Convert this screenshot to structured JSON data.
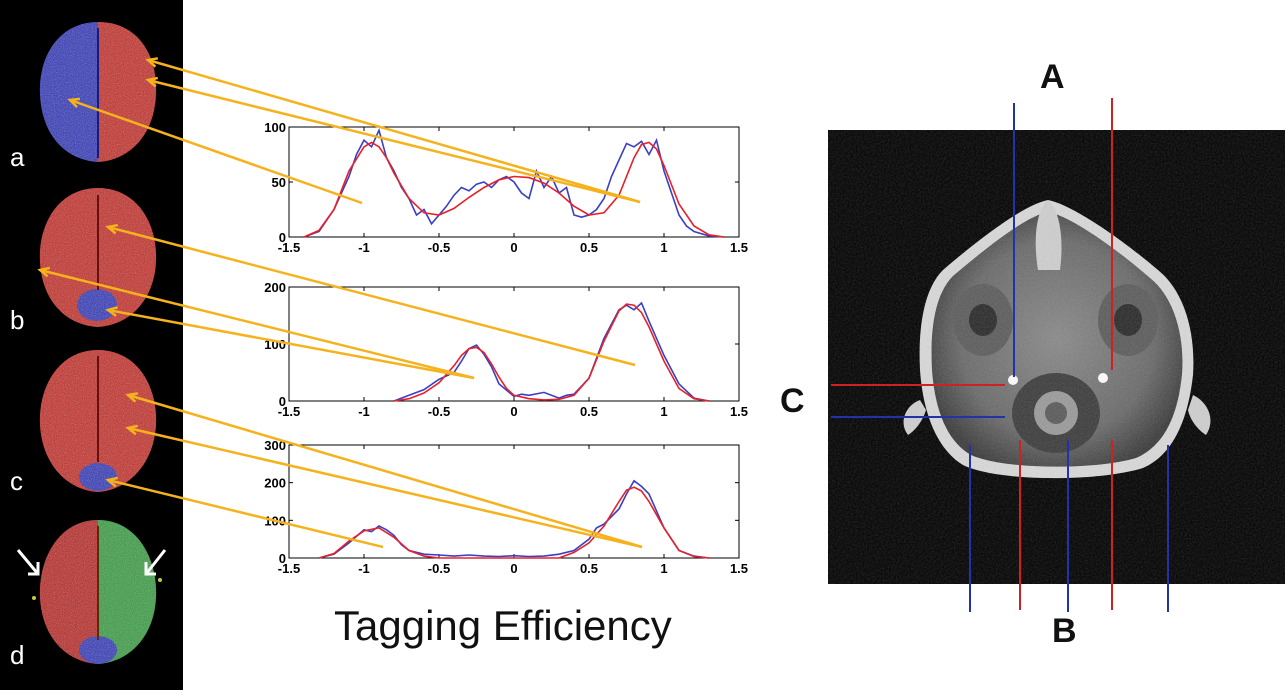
{
  "panels": [
    {
      "letter": "a"
    },
    {
      "letter": "b"
    },
    {
      "letter": "c"
    },
    {
      "letter": "d"
    }
  ],
  "xlabel": "Tagging Efficiency",
  "mri_labels": {
    "a": "A",
    "b": "B",
    "c": "C"
  },
  "colors": {
    "data_line": "#3a3fc4",
    "fit_line": "#e8202a",
    "pointer": "#f5b21d",
    "left_tag": "#3344cc",
    "right_tag": "#cc2222",
    "green_tag": "#2faa3a"
  },
  "chart_data": [
    {
      "type": "line",
      "panel": "a",
      "xlim": [
        -1.5,
        1.5
      ],
      "ylim": [
        0,
        100
      ],
      "xticks": [
        "-1.5",
        "-1",
        "-0.5",
        "0",
        "0.5",
        "1",
        "1.5"
      ],
      "yticks": [
        "0",
        "50",
        "100"
      ],
      "series": [
        {
          "values_x": [
            -1.4,
            -1.3,
            -1.2,
            -1.1,
            -1.05,
            -1.0,
            -0.95,
            -0.9,
            -0.85,
            -0.8,
            -0.75,
            -0.7,
            -0.65,
            -0.6,
            -0.55,
            -0.5,
            -0.45,
            -0.4,
            -0.35,
            -0.3,
            -0.25,
            -0.2,
            -0.15,
            -0.1,
            -0.05,
            0.0,
            0.05,
            0.1,
            0.15,
            0.2,
            0.25,
            0.3,
            0.35,
            0.4,
            0.45,
            0.5,
            0.55,
            0.6,
            0.65,
            0.7,
            0.75,
            0.8,
            0.85,
            0.9,
            0.95,
            1.0,
            1.05,
            1.1,
            1.15,
            1.2,
            1.3,
            1.4
          ],
          "values_y": [
            0,
            5,
            25,
            55,
            75,
            88,
            82,
            97,
            72,
            60,
            45,
            35,
            20,
            25,
            12,
            20,
            28,
            38,
            45,
            42,
            48,
            50,
            45,
            52,
            55,
            50,
            40,
            35,
            60,
            45,
            55,
            40,
            45,
            20,
            18,
            20,
            25,
            35,
            55,
            70,
            85,
            82,
            87,
            75,
            88,
            60,
            40,
            20,
            10,
            5,
            1,
            0
          ]
        },
        {
          "values_x": [
            -1.4,
            -1.3,
            -1.2,
            -1.1,
            -1.0,
            -0.95,
            -0.9,
            -0.85,
            -0.8,
            -0.7,
            -0.6,
            -0.5,
            -0.4,
            -0.3,
            -0.2,
            -0.1,
            0.0,
            0.1,
            0.2,
            0.3,
            0.4,
            0.5,
            0.6,
            0.7,
            0.8,
            0.85,
            0.9,
            0.95,
            1.0,
            1.1,
            1.2,
            1.3,
            1.4
          ],
          "values_y": [
            0,
            6,
            25,
            60,
            82,
            86,
            82,
            72,
            58,
            35,
            22,
            20,
            26,
            36,
            45,
            52,
            55,
            54,
            49,
            40,
            28,
            20,
            22,
            38,
            72,
            84,
            86,
            80,
            65,
            30,
            10,
            2,
            0
          ]
        }
      ]
    },
    {
      "type": "line",
      "panel": "b",
      "xlim": [
        -1.5,
        1.5
      ],
      "ylim": [
        0,
        200
      ],
      "xticks": [
        "-1.5",
        "-1",
        "-0.5",
        "0",
        "0.5",
        "1",
        "1.5"
      ],
      "yticks": [
        "0",
        "100",
        "200"
      ],
      "series": [
        {
          "values_x": [
            -0.8,
            -0.7,
            -0.6,
            -0.5,
            -0.4,
            -0.35,
            -0.3,
            -0.25,
            -0.2,
            -0.15,
            -0.1,
            0.0,
            0.05,
            0.1,
            0.2,
            0.3,
            0.35,
            0.4,
            0.5,
            0.6,
            0.7,
            0.75,
            0.8,
            0.85,
            0.9,
            1.0,
            1.1,
            1.2,
            1.3
          ],
          "values_y": [
            0,
            10,
            20,
            38,
            50,
            70,
            92,
            98,
            82,
            60,
            30,
            8,
            12,
            10,
            15,
            5,
            10,
            12,
            40,
            110,
            160,
            168,
            160,
            172,
            140,
            80,
            30,
            5,
            0
          ]
        },
        {
          "values_x": [
            -0.8,
            -0.7,
            -0.6,
            -0.5,
            -0.4,
            -0.35,
            -0.3,
            -0.25,
            -0.2,
            -0.15,
            -0.1,
            -0.05,
            0.0,
            0.1,
            0.2,
            0.3,
            0.4,
            0.5,
            0.6,
            0.7,
            0.75,
            0.8,
            0.85,
            0.9,
            1.0,
            1.1,
            1.2,
            1.3
          ],
          "values_y": [
            0,
            4,
            14,
            32,
            62,
            80,
            92,
            94,
            85,
            65,
            42,
            22,
            10,
            4,
            2,
            3,
            10,
            40,
            105,
            158,
            170,
            168,
            155,
            130,
            70,
            22,
            4,
            0
          ]
        }
      ]
    },
    {
      "type": "line",
      "panel": "c",
      "xlim": [
        -1.5,
        1.5
      ],
      "ylim": [
        0,
        300
      ],
      "xticks": [
        "-1.5",
        "-1",
        "-0.5",
        "0",
        "0.5",
        "1",
        "1.5"
      ],
      "yticks": [
        "0",
        "100",
        "200",
        "300"
      ],
      "series": [
        {
          "values_x": [
            -1.3,
            -1.2,
            -1.1,
            -1.0,
            -0.95,
            -0.9,
            -0.85,
            -0.8,
            -0.75,
            -0.7,
            -0.6,
            -0.5,
            -0.4,
            -0.3,
            -0.2,
            -0.1,
            0.0,
            0.1,
            0.2,
            0.3,
            0.4,
            0.5,
            0.55,
            0.6,
            0.7,
            0.75,
            0.8,
            0.85,
            0.9,
            1.0,
            1.1,
            1.2,
            1.3
          ],
          "values_y": [
            0,
            10,
            40,
            75,
            70,
            85,
            75,
            60,
            35,
            20,
            10,
            8,
            5,
            8,
            5,
            4,
            6,
            4,
            5,
            10,
            20,
            50,
            80,
            90,
            130,
            170,
            205,
            190,
            170,
            80,
            20,
            5,
            0
          ]
        },
        {
          "values_x": [
            -1.3,
            -1.2,
            -1.1,
            -1.0,
            -0.9,
            -0.8,
            -0.7,
            -0.6,
            -0.5,
            0.0,
            0.3,
            0.4,
            0.5,
            0.6,
            0.7,
            0.75,
            0.8,
            0.85,
            0.9,
            1.0,
            1.1,
            1.2,
            1.3
          ],
          "values_y": [
            0,
            12,
            45,
            72,
            80,
            55,
            20,
            5,
            0,
            0,
            0,
            15,
            40,
            85,
            150,
            180,
            188,
            178,
            150,
            80,
            20,
            4,
            0
          ]
        }
      ]
    }
  ]
}
